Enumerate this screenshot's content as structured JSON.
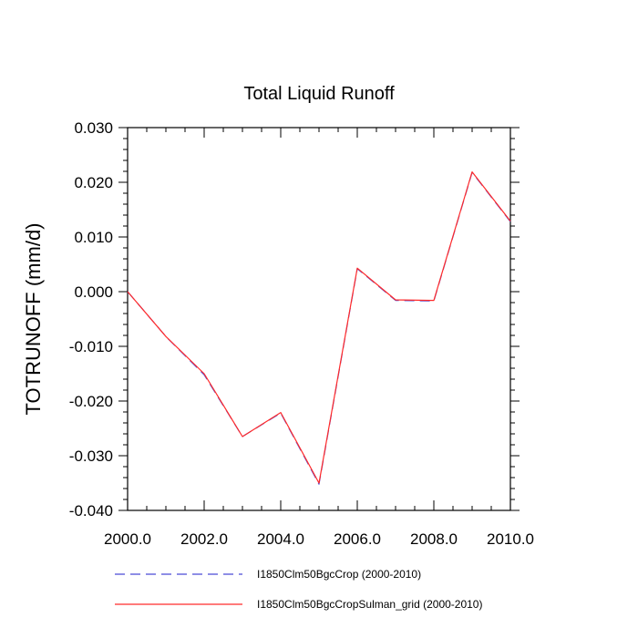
{
  "chart_data": {
    "type": "line",
    "title": "Total Liquid Runoff",
    "xlabel": "",
    "ylabel": "TOTRUNOFF  (mm/d)",
    "xlim": [
      2000,
      2010
    ],
    "ylim": [
      -0.04,
      0.03
    ],
    "x_ticks": [
      2000,
      2002,
      2004,
      2006,
      2008,
      2010
    ],
    "x_tick_labels": [
      "2000.0",
      "2002.0",
      "2004.0",
      "2006.0",
      "2008.0",
      "2010.0"
    ],
    "y_ticks": [
      -0.04,
      -0.03,
      -0.02,
      -0.01,
      0.0,
      0.01,
      0.02,
      0.03
    ],
    "y_tick_labels": [
      "-0.040",
      "-0.030",
      "-0.020",
      "-0.010",
      "0.000",
      "0.010",
      "0.020",
      "0.030"
    ],
    "grid": false,
    "legend_position": "bottom",
    "x": [
      2000,
      2001,
      2002,
      2003,
      2004,
      2005,
      2006,
      2007,
      2008,
      2009,
      2010
    ],
    "series": [
      {
        "name": "I1850Clm50BgcCrop (2000-2010)",
        "color": "#4b4bd6",
        "dash": "dashed",
        "values": [
          0.0,
          -0.0082,
          -0.0152,
          -0.0265,
          -0.0222,
          -0.0352,
          0.0042,
          -0.0016,
          -0.0017,
          0.0218,
          0.0128
        ]
      },
      {
        "name": "I1850Clm50BgcCropSulman_grid (2000-2010)",
        "color": "#ff2a2a",
        "dash": "solid",
        "values": [
          0.0,
          -0.0082,
          -0.015,
          -0.0265,
          -0.0221,
          -0.035,
          0.0043,
          -0.0015,
          -0.0016,
          0.0219,
          0.0129
        ]
      }
    ]
  }
}
